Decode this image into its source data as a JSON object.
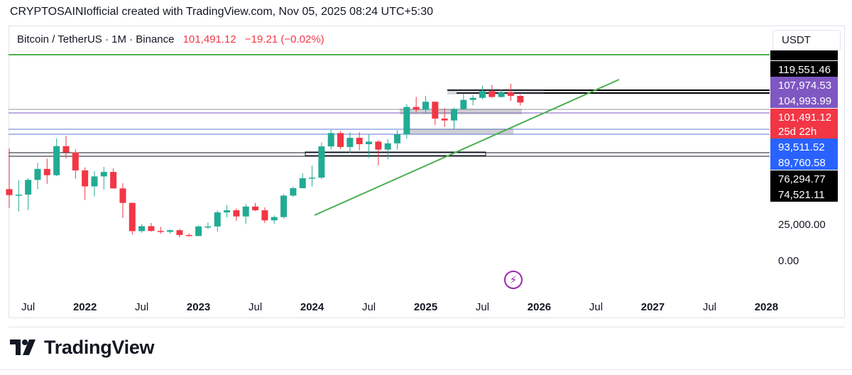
{
  "caption": "CRYPTOSAINIofficial created with TradingView.com, Nov 05, 2025 08:24 UTC+5:30",
  "header": {
    "symbol": "Bitcoin / TetherUS · 1M · Binance",
    "price": "101,491.12",
    "change": "−19.21 (−0.02%)"
  },
  "currency_button": "USDT",
  "brand": {
    "name": "TradingView"
  },
  "icons": {
    "logo": "tradingview-logo-icon",
    "flash": "lightning-bolt-icon"
  },
  "colors": {
    "up": "#22ab94",
    "down": "#f23645",
    "trend": "#4caf50",
    "label_black": "#000000",
    "label_purple": "#7e57c2",
    "label_red": "#f23645",
    "label_blue": "#2962ff"
  },
  "chart_data": {
    "type": "candlestick",
    "title": "",
    "xlabel": "",
    "ylabel": "",
    "x_ticks": [
      "Jul",
      "2022",
      "Jul",
      "2023",
      "Jul",
      "2024",
      "Jul",
      "2025",
      "Jul",
      "2026",
      "Jul",
      "2027",
      "Jul",
      "2028"
    ],
    "y_ticks": [
      "25,000.00",
      "0.00"
    ],
    "price_labels": [
      {
        "value": "119,551.46",
        "style": "black"
      },
      {
        "value": "107,974.53",
        "style": "purple"
      },
      {
        "value": "104,993.99",
        "style": "purple"
      },
      {
        "value": "101,491.12",
        "style": "red"
      },
      {
        "value": "25d 22h",
        "style": "red"
      },
      {
        "value": "93,511.52",
        "style": "blue"
      },
      {
        "value": "89,760.58",
        "style": "blue"
      },
      {
        "value": "76,294.77",
        "style": "black"
      },
      {
        "value": "74,521.11",
        "style": "black"
      }
    ],
    "candles": [
      {
        "date": "2021-05",
        "o": 37300,
        "h": 59600,
        "l": 30000,
        "c": 34800
      },
      {
        "date": "2021-06",
        "o": 34800,
        "h": 41300,
        "l": 28800,
        "c": 35000
      },
      {
        "date": "2021-07",
        "o": 35000,
        "h": 42300,
        "l": 29300,
        "c": 41500
      },
      {
        "date": "2021-08",
        "o": 41500,
        "h": 50500,
        "l": 37300,
        "c": 47100
      },
      {
        "date": "2021-09",
        "o": 47100,
        "h": 53000,
        "l": 39600,
        "c": 43800
      },
      {
        "date": "2021-10",
        "o": 43800,
        "h": 67000,
        "l": 43300,
        "c": 61300
      },
      {
        "date": "2021-11",
        "o": 61300,
        "h": 69000,
        "l": 53300,
        "c": 57000
      },
      {
        "date": "2021-12",
        "o": 57000,
        "h": 59100,
        "l": 42000,
        "c": 46300
      },
      {
        "date": "2022-01",
        "o": 46300,
        "h": 47900,
        "l": 32900,
        "c": 38500
      },
      {
        "date": "2022-02",
        "o": 38500,
        "h": 45800,
        "l": 34300,
        "c": 43200
      },
      {
        "date": "2022-03",
        "o": 43200,
        "h": 48200,
        "l": 37200,
        "c": 45500
      },
      {
        "date": "2022-04",
        "o": 45500,
        "h": 47400,
        "l": 37600,
        "c": 37600
      },
      {
        "date": "2022-05",
        "o": 37600,
        "h": 40000,
        "l": 26700,
        "c": 31800
      },
      {
        "date": "2022-06",
        "o": 31800,
        "h": 31900,
        "l": 17600,
        "c": 19900
      },
      {
        "date": "2022-07",
        "o": 19900,
        "h": 24700,
        "l": 18800,
        "c": 23300
      },
      {
        "date": "2022-08",
        "o": 23300,
        "h": 25200,
        "l": 19600,
        "c": 20000
      },
      {
        "date": "2022-09",
        "o": 20000,
        "h": 22800,
        "l": 18100,
        "c": 19400
      },
      {
        "date": "2022-10",
        "o": 19400,
        "h": 21000,
        "l": 18200,
        "c": 20500
      },
      {
        "date": "2022-11",
        "o": 20500,
        "h": 21400,
        "l": 15500,
        "c": 17200
      },
      {
        "date": "2022-12",
        "o": 17200,
        "h": 18400,
        "l": 16300,
        "c": 16500
      },
      {
        "date": "2023-01",
        "o": 16500,
        "h": 23900,
        "l": 16500,
        "c": 23100
      },
      {
        "date": "2023-02",
        "o": 23100,
        "h": 25300,
        "l": 21400,
        "c": 23100
      },
      {
        "date": "2023-03",
        "o": 23100,
        "h": 29200,
        "l": 19500,
        "c": 28500
      },
      {
        "date": "2023-04",
        "o": 28500,
        "h": 31000,
        "l": 26900,
        "c": 29200
      },
      {
        "date": "2023-05",
        "o": 29200,
        "h": 29800,
        "l": 25800,
        "c": 27200
      },
      {
        "date": "2023-06",
        "o": 27200,
        "h": 31400,
        "l": 24800,
        "c": 30500
      },
      {
        "date": "2023-07",
        "o": 30500,
        "h": 31800,
        "l": 28900,
        "c": 29200
      },
      {
        "date": "2023-08",
        "o": 29200,
        "h": 30200,
        "l": 25200,
        "c": 26000
      },
      {
        "date": "2023-09",
        "o": 26000,
        "h": 27500,
        "l": 24900,
        "c": 27000
      },
      {
        "date": "2023-10",
        "o": 27000,
        "h": 35200,
        "l": 26600,
        "c": 34600
      },
      {
        "date": "2023-11",
        "o": 34600,
        "h": 38400,
        "l": 34100,
        "c": 37700
      },
      {
        "date": "2023-12",
        "o": 37700,
        "h": 44700,
        "l": 37600,
        "c": 42300
      },
      {
        "date": "2024-01",
        "o": 42300,
        "h": 48900,
        "l": 38500,
        "c": 42600
      },
      {
        "date": "2024-02",
        "o": 42600,
        "h": 64000,
        "l": 41900,
        "c": 61100
      },
      {
        "date": "2024-03",
        "o": 61100,
        "h": 73800,
        "l": 59000,
        "c": 71300
      },
      {
        "date": "2024-04",
        "o": 71300,
        "h": 72800,
        "l": 59200,
        "c": 60700
      },
      {
        "date": "2024-05",
        "o": 60700,
        "h": 71900,
        "l": 56600,
        "c": 67500
      },
      {
        "date": "2024-06",
        "o": 67500,
        "h": 72000,
        "l": 58400,
        "c": 62700
      },
      {
        "date": "2024-07",
        "o": 62700,
        "h": 70000,
        "l": 53500,
        "c": 64600
      },
      {
        "date": "2024-08",
        "o": 64600,
        "h": 65600,
        "l": 49000,
        "c": 58900
      },
      {
        "date": "2024-09",
        "o": 58900,
        "h": 66500,
        "l": 52500,
        "c": 63300
      },
      {
        "date": "2024-10",
        "o": 63300,
        "h": 73600,
        "l": 58900,
        "c": 70200
      },
      {
        "date": "2024-11",
        "o": 70200,
        "h": 99600,
        "l": 66800,
        "c": 96400
      },
      {
        "date": "2024-12",
        "o": 96400,
        "h": 108300,
        "l": 90500,
        "c": 93400
      },
      {
        "date": "2025-01",
        "o": 93400,
        "h": 109600,
        "l": 89200,
        "c": 102400
      },
      {
        "date": "2025-02",
        "o": 102400,
        "h": 102500,
        "l": 78300,
        "c": 84300
      },
      {
        "date": "2025-03",
        "o": 84300,
        "h": 95000,
        "l": 76600,
        "c": 82500
      },
      {
        "date": "2025-04",
        "o": 82500,
        "h": 95700,
        "l": 74500,
        "c": 94200
      },
      {
        "date": "2025-05",
        "o": 94200,
        "h": 111900,
        "l": 93400,
        "c": 104600
      },
      {
        "date": "2025-06",
        "o": 104600,
        "h": 110500,
        "l": 98200,
        "c": 107100
      },
      {
        "date": "2025-07",
        "o": 107100,
        "h": 123200,
        "l": 105300,
        "c": 115700
      },
      {
        "date": "2025-08",
        "o": 115700,
        "h": 124500,
        "l": 107300,
        "c": 108200
      },
      {
        "date": "2025-09",
        "o": 108200,
        "h": 117900,
        "l": 107300,
        "c": 114000
      },
      {
        "date": "2025-10",
        "o": 114000,
        "h": 126200,
        "l": 103500,
        "c": 109600
      },
      {
        "date": "2025-11",
        "o": 109600,
        "h": 111000,
        "l": 98000,
        "c": 101491.12
      }
    ]
  }
}
